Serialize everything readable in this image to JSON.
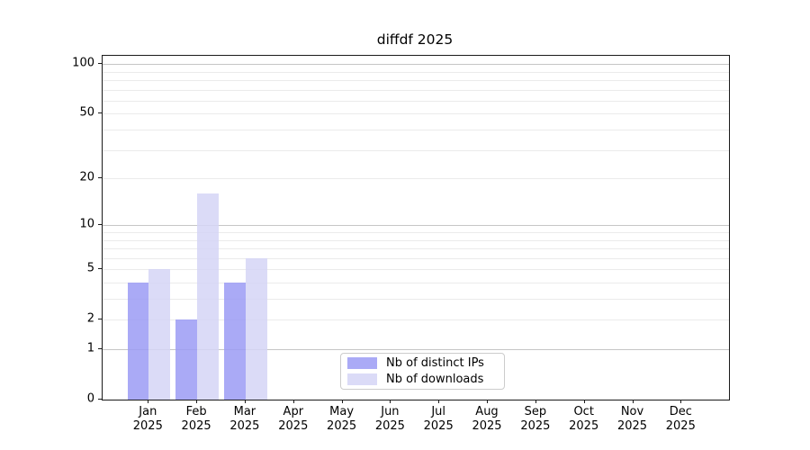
{
  "chart_data": {
    "type": "bar",
    "title": "diffdf 2025",
    "categories": [
      "Jan",
      "Feb",
      "Mar",
      "Apr",
      "May",
      "Jun",
      "Jul",
      "Aug",
      "Sep",
      "Oct",
      "Nov",
      "Dec"
    ],
    "category_year": "2025",
    "series": [
      {
        "name": "Nb of distinct IPs",
        "color": "#9b9bf5",
        "alpha": 0.85,
        "values": [
          4,
          2,
          4,
          0,
          0,
          0,
          0,
          0,
          0,
          0,
          0,
          0
        ]
      },
      {
        "name": "Nb of downloads",
        "color": "#d5d5f6",
        "alpha": 0.85,
        "values": [
          5,
          16,
          6,
          0,
          0,
          0,
          0,
          0,
          0,
          0,
          0,
          0
        ]
      }
    ],
    "yscale": "log1p",
    "ylim": [
      0,
      112
    ],
    "yticks": [
      100,
      50,
      20,
      10,
      5,
      2,
      1,
      0
    ],
    "minor_gridlines": [
      2,
      3,
      4,
      5,
      6,
      7,
      8,
      9,
      20,
      30,
      40,
      50,
      60,
      70,
      80,
      90
    ],
    "major_gridlines": [
      1,
      10,
      100
    ],
    "grid": true,
    "legend_position": "lower center"
  },
  "colors": {
    "minor_grid": "#ebebeb",
    "major_grid": "#c6c6c6",
    "axis": "#1a1a1a",
    "background": "#ffffff"
  }
}
